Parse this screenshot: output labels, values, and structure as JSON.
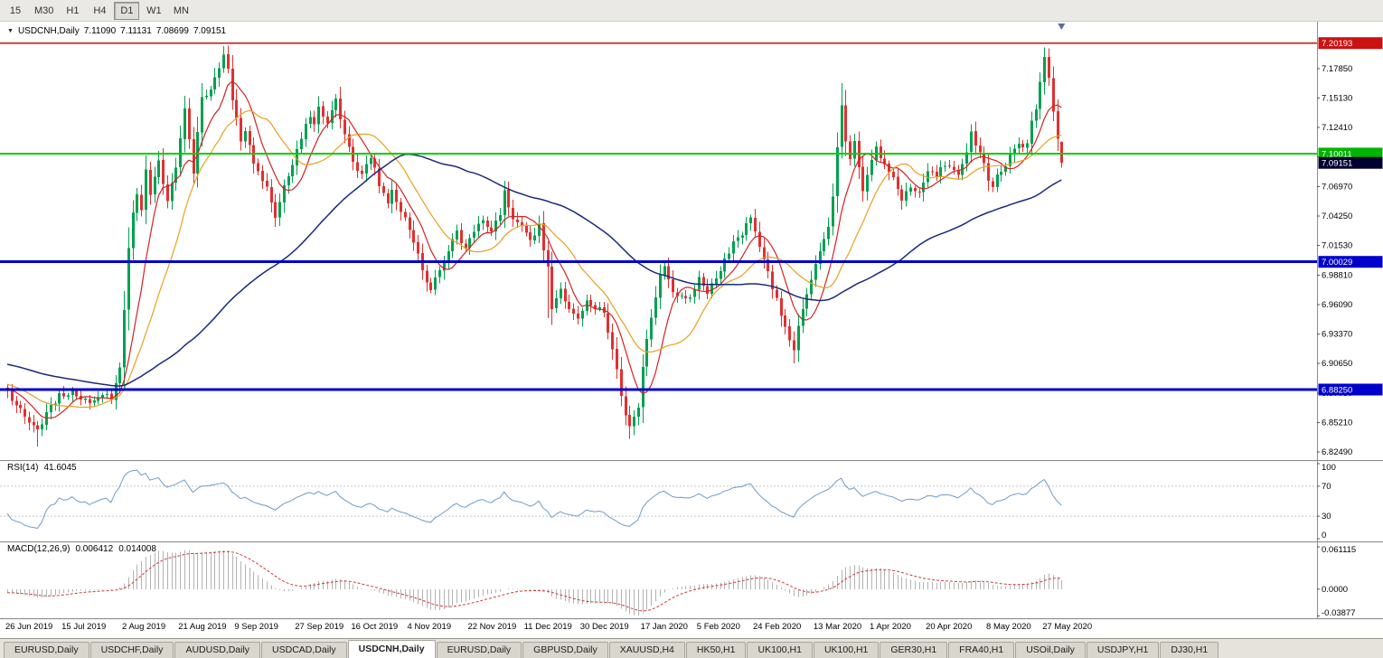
{
  "toolbar": {
    "timeframes": [
      "15",
      "M30",
      "H1",
      "H4",
      "D1",
      "W1",
      "MN"
    ],
    "active": "D1"
  },
  "main_header": {
    "dropdown_icon": "▼",
    "symbol": "USDCNH,Daily",
    "open": "7.11090",
    "high": "7.11131",
    "low": "7.08699",
    "close": "7.09151"
  },
  "rsi_panel": {
    "name": "RSI(14)",
    "value": "41.6045",
    "axis_labels": [
      100,
      70,
      30,
      0
    ],
    "levels": [
      70,
      30
    ],
    "line_color": "#6f9cc6"
  },
  "macd_panel": {
    "name": "MACD(12,26,9)",
    "value_main": "0.006412",
    "value_signal": "0.014008",
    "axis_labels": [
      {
        "text": "0.061115",
        "value": 0.061115
      },
      {
        "text": "0.0000",
        "value": 0
      },
      {
        "text": "-0.03877",
        "value": -0.03877
      }
    ],
    "range": {
      "max": 0.0625,
      "min": -0.0395
    },
    "histogram_color": "#b2b2b2",
    "signal_color": "#cc3b3b"
  },
  "price_axis": {
    "ticks": [
      "7.17850",
      "7.15130",
      "7.12410",
      "7.09690",
      "7.06970",
      "7.04250",
      "7.01530",
      "6.98810",
      "6.96090",
      "6.93370",
      "6.90650",
      "6.87930",
      "6.85210",
      "6.82490"
    ],
    "range": {
      "max": 7.22,
      "min": 6.82
    }
  },
  "hlines": [
    {
      "price": 7.20193,
      "label": "7.20193",
      "color": "#cc1111",
      "label_bg": "#cc1111",
      "width": 1.5
    },
    {
      "price": 7.10011,
      "label": "7.10011",
      "color": "#00ce00",
      "label_bg": "#00b400",
      "width": 2
    },
    {
      "price": 7.00029,
      "label": "7.00029",
      "color": "#0000cc",
      "label_bg": "#0000cc",
      "width": 3
    },
    {
      "price": 6.8825,
      "label": "6.88250",
      "color": "#0000cc",
      "label_bg": "#0000cc",
      "width": 3
    }
  ],
  "current_price": {
    "text": "7.09151",
    "value": 7.09151,
    "bg": "#00002f"
  },
  "date_axis": [
    {
      "text": "26 Jun 2019",
      "i": 0
    },
    {
      "text": "15 Jul 2019",
      "i": 13
    },
    {
      "text": "2 Aug 2019",
      "i": 27
    },
    {
      "text": "21 Aug 2019",
      "i": 40
    },
    {
      "text": "9 Sep 2019",
      "i": 53
    },
    {
      "text": "27 Sep 2019",
      "i": 67
    },
    {
      "text": "16 Oct 2019",
      "i": 80
    },
    {
      "text": "4 Nov 2019",
      "i": 93
    },
    {
      "text": "22 Nov 2019",
      "i": 107
    },
    {
      "text": "11 Dec 2019",
      "i": 120
    },
    {
      "text": "30 Dec 2019",
      "i": 133
    },
    {
      "text": "17 Jan 2020",
      "i": 147
    },
    {
      "text": "5 Feb 2020",
      "i": 160
    },
    {
      "text": "24 Feb 2020",
      "i": 173
    },
    {
      "text": "13 Mar 2020",
      "i": 187
    },
    {
      "text": "1 Apr 2020",
      "i": 200
    },
    {
      "text": "20 Apr 2020",
      "i": 213
    },
    {
      "text": "8 May 2020",
      "i": 227
    },
    {
      "text": "27 May 2020",
      "i": 240
    }
  ],
  "tabs": {
    "active_index": 4,
    "items": [
      "EURUSD,Daily",
      "USDCHF,Daily",
      "AUDUSD,Daily",
      "USDCAD,Daily",
      "USDCNH,Daily",
      "EURUSD,Daily",
      "GBPUSD,Daily",
      "XAUUSD,H4",
      "HK50,H1",
      "UK100,H1",
      "UK100,H1",
      "GER30,H1",
      "FRA40,H1",
      "USOil,Daily",
      "USDJPY,H1",
      "DJ30,H1"
    ]
  },
  "chart_data": {
    "type": "candlestick",
    "symbol": "USDCNH",
    "timeframe": "Daily",
    "bars": 245,
    "up_color": "#00a050",
    "down_color": "#e03030",
    "noise_amp": 0.0035,
    "seed": 123456,
    "prehistory": {
      "start": 6.935,
      "end": 6.882,
      "bars": 70
    },
    "last_bar": {
      "o": 7.1109,
      "h": 7.11131,
      "l": 7.08699,
      "c": 7.09151
    },
    "wick_overrides": {
      "7": {
        "l": 6.83
      },
      "50": {
        "h": 7.1992
      },
      "115": {
        "h": 7.0748
      },
      "125": {
        "l": 6.9485
      },
      "144": {
        "l": 6.8372
      },
      "182": {
        "l": 6.9065
      },
      "193": {
        "h": 7.1648
      },
      "240": {
        "h": 7.1978
      }
    },
    "moving_averages": [
      {
        "period": 8,
        "color": "#d42222",
        "width": 1.2
      },
      {
        "period": 17,
        "color": "#e8a020",
        "width": 1.2
      },
      {
        "period": 65,
        "color": "#1a2a7a",
        "width": 1.5
      }
    ],
    "anchors": [
      [
        0,
        6.878
      ],
      [
        3,
        6.868
      ],
      [
        5,
        6.85
      ],
      [
        7,
        6.843
      ],
      [
        9,
        6.862
      ],
      [
        12,
        6.878
      ],
      [
        15,
        6.88
      ],
      [
        18,
        6.871
      ],
      [
        21,
        6.877
      ],
      [
        24,
        6.874
      ],
      [
        26,
        6.902
      ],
      [
        27,
        6.958
      ],
      [
        28,
        7.012
      ],
      [
        29,
        7.048
      ],
      [
        30,
        7.062
      ],
      [
        31,
        7.045
      ],
      [
        32,
        7.086
      ],
      [
        33,
        7.06
      ],
      [
        35,
        7.094
      ],
      [
        37,
        7.057
      ],
      [
        39,
        7.089
      ],
      [
        41,
        7.14
      ],
      [
        43,
        7.083
      ],
      [
        45,
        7.152
      ],
      [
        47,
        7.16
      ],
      [
        49,
        7.178
      ],
      [
        50,
        7.192
      ],
      [
        51,
        7.176
      ],
      [
        52,
        7.148
      ],
      [
        54,
        7.112
      ],
      [
        55,
        7.122
      ],
      [
        57,
        7.094
      ],
      [
        59,
        7.078
      ],
      [
        61,
        7.056
      ],
      [
        62,
        7.042
      ],
      [
        64,
        7.068
      ],
      [
        66,
        7.092
      ],
      [
        68,
        7.116
      ],
      [
        70,
        7.135
      ],
      [
        71,
        7.126
      ],
      [
        72,
        7.144
      ],
      [
        74,
        7.128
      ],
      [
        76,
        7.15
      ],
      [
        78,
        7.118
      ],
      [
        80,
        7.096
      ],
      [
        82,
        7.078
      ],
      [
        84,
        7.097
      ],
      [
        86,
        7.071
      ],
      [
        88,
        7.057
      ],
      [
        89,
        7.066
      ],
      [
        91,
        7.048
      ],
      [
        93,
        7.028
      ],
      [
        95,
        7.008
      ],
      [
        96,
        6.99
      ],
      [
        98,
        6.972
      ],
      [
        100,
        6.993
      ],
      [
        102,
        7.013
      ],
      [
        104,
        7.028
      ],
      [
        106,
        7.011
      ],
      [
        108,
        7.031
      ],
      [
        110,
        7.042
      ],
      [
        112,
        7.027
      ],
      [
        114,
        7.044
      ],
      [
        115,
        7.064
      ],
      [
        117,
        7.04
      ],
      [
        119,
        7.037
      ],
      [
        121,
        7.02
      ],
      [
        123,
        7.032
      ],
      [
        125,
        6.996
      ],
      [
        126,
        6.96
      ],
      [
        128,
        6.974
      ],
      [
        130,
        6.958
      ],
      [
        132,
        6.946
      ],
      [
        134,
        6.967
      ],
      [
        136,
        6.96
      ],
      [
        138,
        6.952
      ],
      [
        140,
        6.92
      ],
      [
        142,
        6.876
      ],
      [
        144,
        6.846
      ],
      [
        146,
        6.866
      ],
      [
        147,
        6.906
      ],
      [
        149,
        6.952
      ],
      [
        151,
        6.985
      ],
      [
        152,
        6.998
      ],
      [
        154,
        6.974
      ],
      [
        156,
        6.97
      ],
      [
        158,
        6.968
      ],
      [
        160,
        6.986
      ],
      [
        162,
        6.973
      ],
      [
        164,
        6.988
      ],
      [
        166,
        7.002
      ],
      [
        168,
        7.016
      ],
      [
        170,
        7.028
      ],
      [
        172,
        7.042
      ],
      [
        174,
        7.016
      ],
      [
        176,
        6.992
      ],
      [
        178,
        6.964
      ],
      [
        180,
        6.938
      ],
      [
        182,
        6.922
      ],
      [
        184,
        6.956
      ],
      [
        186,
        6.982
      ],
      [
        188,
        7.01
      ],
      [
        190,
        7.035
      ],
      [
        191,
        7.062
      ],
      [
        192,
        7.108
      ],
      [
        193,
        7.142
      ],
      [
        194,
        7.112
      ],
      [
        195,
        7.092
      ],
      [
        196,
        7.115
      ],
      [
        198,
        7.062
      ],
      [
        199,
        7.078
      ],
      [
        201,
        7.106
      ],
      [
        203,
        7.092
      ],
      [
        205,
        7.076
      ],
      [
        207,
        7.06
      ],
      [
        209,
        7.07
      ],
      [
        211,
        7.066
      ],
      [
        213,
        7.082
      ],
      [
        215,
        7.08
      ],
      [
        217,
        7.092
      ],
      [
        219,
        7.088
      ],
      [
        220,
        7.078
      ],
      [
        222,
        7.098
      ],
      [
        223,
        7.12
      ],
      [
        225,
        7.098
      ],
      [
        227,
        7.078
      ],
      [
        228,
        7.071
      ],
      [
        230,
        7.084
      ],
      [
        232,
        7.098
      ],
      [
        234,
        7.112
      ],
      [
        235,
        7.104
      ],
      [
        236,
        7.108
      ],
      [
        237,
        7.132
      ],
      [
        238,
        7.144
      ],
      [
        239,
        7.164
      ],
      [
        240,
        7.186
      ],
      [
        241,
        7.168
      ],
      [
        242,
        7.138
      ],
      [
        243,
        7.112
      ],
      [
        244,
        7.0915
      ]
    ]
  }
}
